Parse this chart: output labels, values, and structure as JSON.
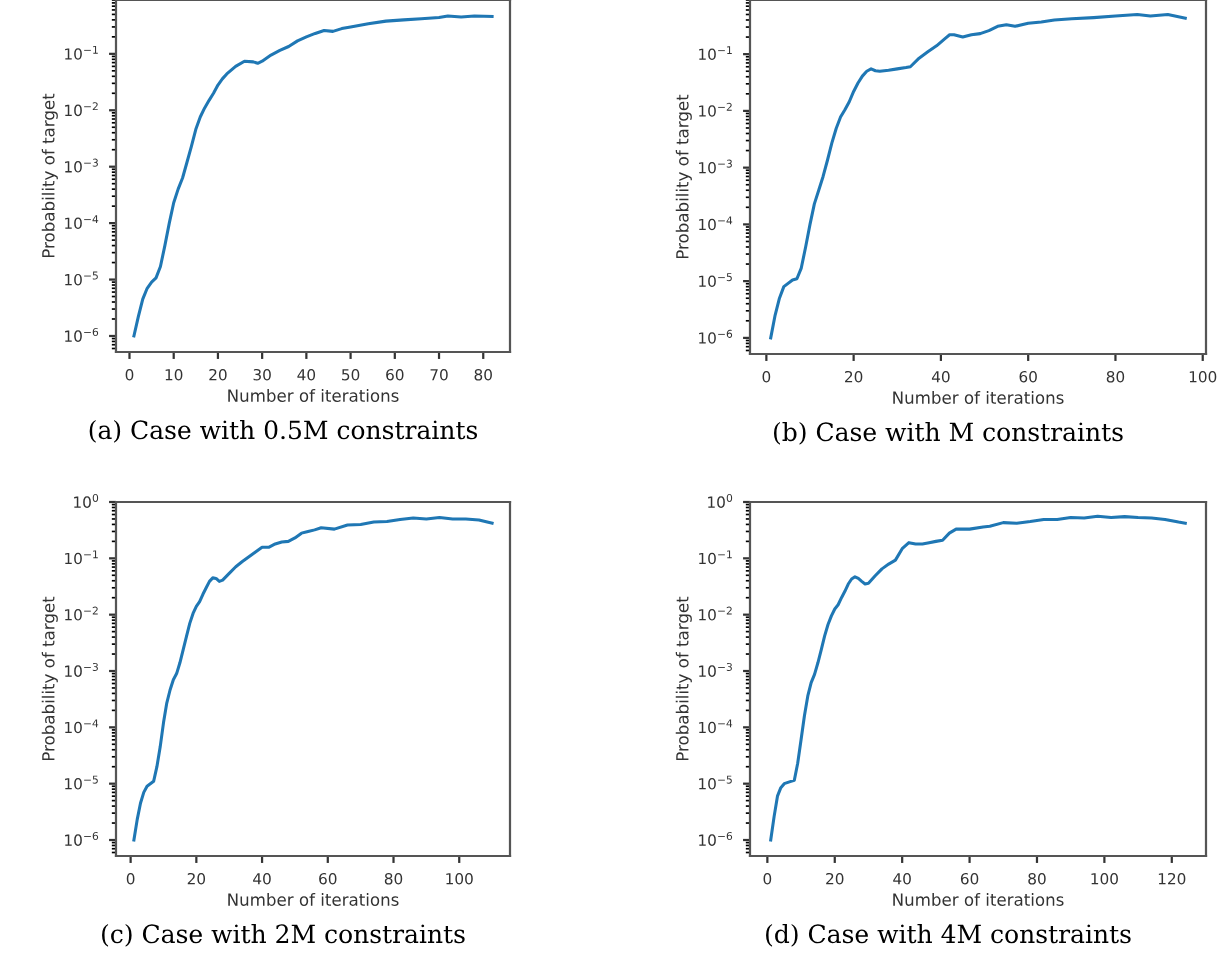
{
  "chart_data": [
    {
      "type": "line",
      "xlabel": "Number of iterations",
      "ylabel": "Probability of target",
      "annotations": [
        "(a) Case with 0.5M constraints"
      ],
      "log": "y",
      "line_style": "solid",
      "xlim": [
        -3.05,
        86.05
      ],
      "ylim": [
        5.2e-07,
        0.9
      ],
      "xticks": [
        0,
        10,
        20,
        30,
        40,
        50,
        60,
        70,
        80
      ],
      "yticks": [
        {
          "value": 1e-06,
          "label": "10$^{−6}$"
        },
        {
          "value": 1e-05,
          "label": "10$^{−5}$"
        },
        {
          "value": 0.0001,
          "label": "10$^{−4}$"
        },
        {
          "value": 0.001,
          "label": "10$^{−3}$"
        },
        {
          "value": 0.01,
          "label": "10$^{−2}$"
        },
        {
          "value": 0.1,
          "label": "10$^{−1}$"
        }
      ],
      "series": [
        {
          "color": "#1f77b4",
          "x": [
            1,
            2,
            3,
            4,
            5,
            6,
            7,
            8,
            9,
            10,
            11,
            12,
            13,
            14,
            15,
            16,
            17,
            18,
            19,
            20,
            21,
            22,
            24,
            26,
            28,
            29,
            30,
            32,
            34,
            36,
            38,
            40,
            42,
            44,
            46,
            48,
            50,
            54,
            58,
            62,
            66,
            70,
            72,
            75,
            78,
            82
          ],
          "values": [
            1e-06,
            2.2e-06,
            4.5e-06,
            7e-06,
            9e-06,
            1.07e-05,
            1.7e-05,
            4e-05,
            0.0001,
            0.00023,
            0.0004,
            0.00063,
            0.0012,
            0.0023,
            0.0046,
            0.0076,
            0.011,
            0.015,
            0.02,
            0.028,
            0.036,
            0.044,
            0.06,
            0.074,
            0.072,
            0.068,
            0.074,
            0.095,
            0.115,
            0.135,
            0.17,
            0.2,
            0.23,
            0.26,
            0.25,
            0.28,
            0.3,
            0.34,
            0.38,
            0.4,
            0.42,
            0.44,
            0.47,
            0.45,
            0.47,
            0.46
          ]
        }
      ]
    },
    {
      "type": "line",
      "xlabel": "Number of iterations",
      "ylabel": "Probability of target",
      "annotations": [
        "(b) Case with M constraints"
      ],
      "log": "y",
      "line_style": "solid",
      "xlim": [
        -3.75,
        100.75
      ],
      "ylim": [
        5.2e-07,
        0.9
      ],
      "xticks": [
        0,
        20,
        40,
        60,
        80,
        100
      ],
      "yticks": [
        {
          "value": 1e-06,
          "label": "10$^{−6}$"
        },
        {
          "value": 1e-05,
          "label": "10$^{−5}$"
        },
        {
          "value": 0.0001,
          "label": "10$^{−4}$"
        },
        {
          "value": 0.001,
          "label": "10$^{−3}$"
        },
        {
          "value": 0.01,
          "label": "10$^{−2}$"
        },
        {
          "value": 0.1,
          "label": "10$^{−1}$"
        }
      ],
      "series": [
        {
          "color": "#1f77b4",
          "x": [
            1,
            2,
            3,
            4,
            6,
            7,
            8,
            9,
            10,
            11,
            12,
            13,
            14,
            15,
            16,
            17,
            18,
            19,
            20,
            21,
            22,
            23,
            24,
            25,
            26,
            28,
            30,
            32,
            33,
            35,
            37,
            39,
            41,
            42,
            43,
            45,
            47,
            49,
            51,
            53,
            55,
            57,
            60,
            63,
            66,
            70,
            75,
            80,
            85,
            88,
            92,
            96
          ],
          "values": [
            1e-06,
            2.5e-06,
            5e-06,
            8e-06,
            1.05e-05,
            1.1e-05,
            1.7e-05,
            4e-05,
            0.0001,
            0.00023,
            0.0004,
            0.0007,
            0.00135,
            0.0027,
            0.0049,
            0.0078,
            0.0105,
            0.0145,
            0.022,
            0.031,
            0.041,
            0.05,
            0.055,
            0.051,
            0.05,
            0.052,
            0.055,
            0.058,
            0.06,
            0.085,
            0.11,
            0.14,
            0.19,
            0.22,
            0.22,
            0.2,
            0.22,
            0.23,
            0.26,
            0.31,
            0.33,
            0.31,
            0.35,
            0.37,
            0.4,
            0.42,
            0.44,
            0.47,
            0.5,
            0.47,
            0.5,
            0.43
          ]
        }
      ]
    },
    {
      "type": "line",
      "xlabel": "Number of iterations",
      "ylabel": "Probability of target",
      "annotations": [
        "(c) Case with 2M constraints"
      ],
      "log": "y",
      "line_style": "solid",
      "xlim": [
        -4.45,
        115.45
      ],
      "ylim": [
        5.2e-07,
        1
      ],
      "xticks": [
        0,
        20,
        40,
        60,
        80,
        100
      ],
      "yticks": [
        {
          "value": 1e-06,
          "label": "10$^{−6}$"
        },
        {
          "value": 1e-05,
          "label": "10$^{−5}$"
        },
        {
          "value": 0.0001,
          "label": "10$^{−4}$"
        },
        {
          "value": 0.001,
          "label": "10$^{−3}$"
        },
        {
          "value": 0.01,
          "label": "10$^{−2}$"
        },
        {
          "value": 0.1,
          "label": "10$^{−1}$"
        },
        {
          "value": 1,
          "label": "10$^{0}$"
        }
      ],
      "series": [
        {
          "color": "#1f77b4",
          "x": [
            1,
            2,
            3,
            4,
            5,
            7,
            8,
            9,
            10,
            11,
            12,
            13,
            14,
            15,
            16,
            17,
            18,
            19,
            20,
            21,
            22,
            23,
            24,
            25,
            26,
            27,
            28,
            30,
            32,
            34,
            36,
            38,
            40,
            42,
            44,
            46,
            48,
            50,
            52,
            54,
            56,
            58,
            62,
            66,
            70,
            74,
            78,
            82,
            86,
            90,
            94,
            98,
            102,
            106,
            110
          ],
          "values": [
            1e-06,
            2.3e-06,
            4.5e-06,
            7e-06,
            9e-06,
            1.1e-05,
            2e-05,
            4.5e-05,
            0.00012,
            0.00027,
            0.00046,
            0.0007,
            0.0009,
            0.0014,
            0.0024,
            0.0041,
            0.007,
            0.0105,
            0.014,
            0.017,
            0.023,
            0.03,
            0.039,
            0.045,
            0.044,
            0.039,
            0.041,
            0.054,
            0.071,
            0.088,
            0.107,
            0.13,
            0.157,
            0.157,
            0.18,
            0.195,
            0.2,
            0.23,
            0.28,
            0.3,
            0.32,
            0.35,
            0.33,
            0.39,
            0.4,
            0.44,
            0.45,
            0.49,
            0.52,
            0.5,
            0.53,
            0.5,
            0.5,
            0.48,
            0.42
          ]
        }
      ]
    },
    {
      "type": "line",
      "xlabel": "Number of iterations",
      "ylabel": "Probability of target",
      "annotations": [
        "(d) Case with 4M constraints"
      ],
      "log": "y",
      "line_style": "solid",
      "xlim": [
        -5.15,
        130.15
      ],
      "ylim": [
        5.2e-07,
        1
      ],
      "xticks": [
        0,
        20,
        40,
        60,
        80,
        100,
        120
      ],
      "yticks": [
        {
          "value": 1e-06,
          "label": "10$^{−6}$"
        },
        {
          "value": 1e-05,
          "label": "10$^{−5}$"
        },
        {
          "value": 0.0001,
          "label": "10$^{−4}$"
        },
        {
          "value": 0.001,
          "label": "10$^{−3}$"
        },
        {
          "value": 0.01,
          "label": "10$^{−2}$"
        },
        {
          "value": 0.1,
          "label": "10$^{−1}$"
        },
        {
          "value": 1,
          "label": "10$^{0}$"
        }
      ],
      "series": [
        {
          "color": "#1f77b4",
          "x": [
            1,
            2,
            3,
            4,
            5,
            7,
            8,
            9,
            10,
            11,
            12,
            13,
            14,
            15,
            16,
            17,
            18,
            19,
            20,
            21,
            22,
            23,
            24,
            25,
            26,
            27,
            28,
            29,
            30,
            32,
            34,
            36,
            38,
            40,
            42,
            44,
            46,
            48,
            50,
            52,
            54,
            56,
            58,
            60,
            64,
            66,
            70,
            74,
            78,
            82,
            86,
            90,
            94,
            98,
            102,
            106,
            110,
            114,
            118,
            122,
            124
          ],
          "values": [
            1e-06,
            2.6e-06,
            6e-06,
            8.5e-06,
            1e-05,
            1.1e-05,
            1.15e-05,
            2.3e-05,
            6e-05,
            0.00016,
            0.00036,
            0.00062,
            0.00087,
            0.0014,
            0.0024,
            0.0042,
            0.0067,
            0.0095,
            0.0126,
            0.015,
            0.02,
            0.026,
            0.035,
            0.043,
            0.047,
            0.044,
            0.039,
            0.035,
            0.036,
            0.049,
            0.065,
            0.079,
            0.093,
            0.148,
            0.19,
            0.18,
            0.18,
            0.19,
            0.2,
            0.21,
            0.28,
            0.33,
            0.33,
            0.33,
            0.36,
            0.37,
            0.43,
            0.42,
            0.45,
            0.49,
            0.49,
            0.53,
            0.52,
            0.56,
            0.53,
            0.55,
            0.53,
            0.52,
            0.49,
            0.44,
            0.42
          ]
        }
      ]
    }
  ]
}
